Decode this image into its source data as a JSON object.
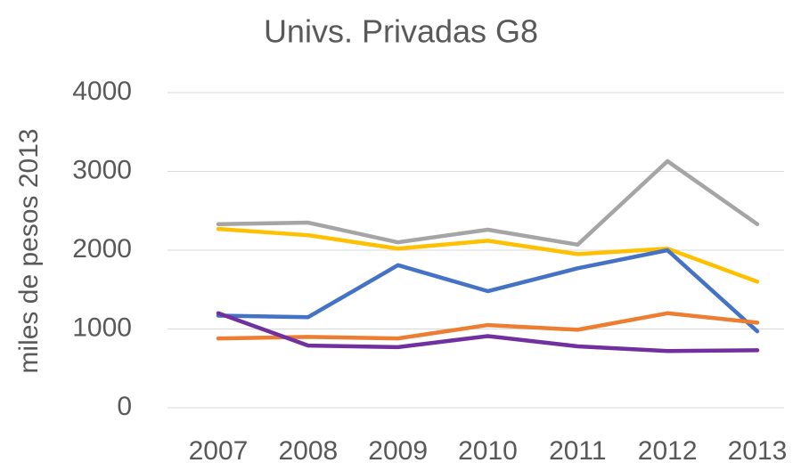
{
  "chart_data": {
    "type": "line",
    "title": "Univs. Privadas G8",
    "y_label": "miles de pesos 2013",
    "categories": [
      "2007",
      "2008",
      "2009",
      "2010",
      "2011",
      "2012",
      "2013"
    ],
    "series": [
      {
        "color": "#a5a5a5",
        "values": [
          2330,
          2350,
          2100,
          2260,
          2070,
          3130,
          2330
        ]
      },
      {
        "color": "#ffc000",
        "values": [
          2270,
          2190,
          2020,
          2120,
          1950,
          2020,
          1600
        ]
      },
      {
        "color": "#4472c4",
        "values": [
          1170,
          1150,
          1810,
          1480,
          1770,
          2000,
          970
        ]
      },
      {
        "color": "#ed7d31",
        "values": [
          880,
          900,
          880,
          1050,
          990,
          1200,
          1080
        ]
      },
      {
        "color": "#7030a0",
        "values": [
          1200,
          790,
          770,
          910,
          780,
          720,
          730
        ]
      }
    ],
    "ylim": [
      0,
      4000
    ],
    "yticks": [
      0,
      1000,
      2000,
      3000,
      4000
    ],
    "grid": true
  }
}
